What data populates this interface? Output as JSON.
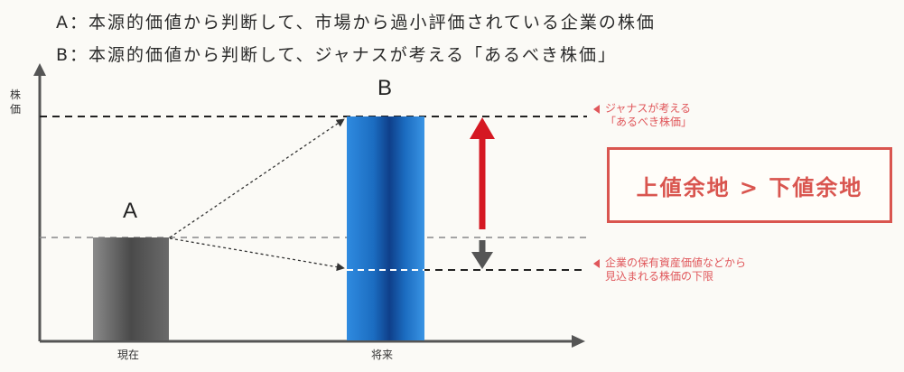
{
  "legend": {
    "a": "A：本源的価値から判断して、市場から過小評価されている企業の株価",
    "b": "B：本源的価値から判断して、ジャナスが考える「あるべき株価」"
  },
  "axes": {
    "y_label_1": "株",
    "y_label_2": "価",
    "x_present": "現在",
    "x_future": "将来"
  },
  "bars": {
    "a_label": "A",
    "b_label": "B"
  },
  "notes": {
    "upper_line1": "ジャナスが考える",
    "upper_line2": "「あるべき株価」",
    "lower_line1": "企業の保有資産価値などから",
    "lower_line2": "見込まれる株価の下限"
  },
  "callout": "上値余地 > 下値余地",
  "colors": {
    "accent_red": "#e0575b",
    "arrow_red": "#d51822",
    "bar_blue": "#1f6fc0",
    "bar_gray": "#555555"
  }
}
